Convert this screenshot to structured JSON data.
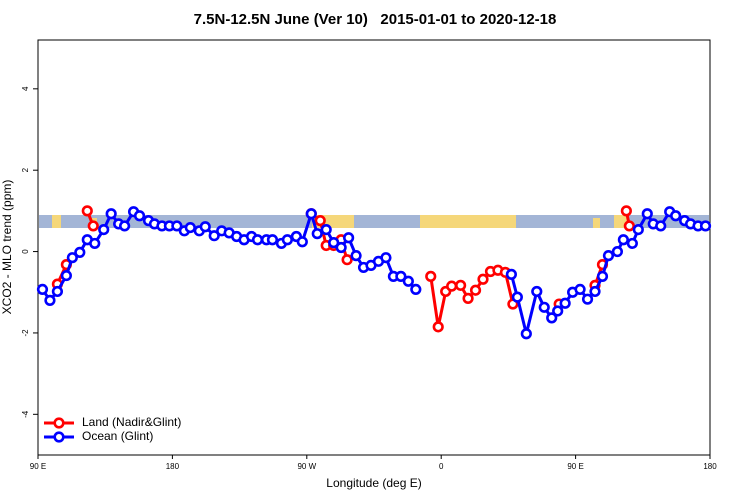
{
  "chart_data": {
    "type": "line",
    "title": "7.5N-12.5N June (Ver 10)   2015-01-01 to 2020-12-18",
    "x_label": "Longitude (deg E)",
    "y_label": "XCO2 - MLO trend (ppm)",
    "xlim": [
      90,
      540
    ],
    "ylim": [
      -5,
      5.2
    ],
    "xticks": [
      {
        "value": 90,
        "label": "90 E"
      },
      {
        "value": 180,
        "label": "180"
      },
      {
        "value": 270,
        "label": "90 W"
      },
      {
        "value": 360,
        "label": "0"
      },
      {
        "value": 450,
        "label": "90 E"
      },
      {
        "value": 540,
        "label": "180"
      }
    ],
    "yticks": [
      -4,
      -2,
      0,
      2,
      4
    ],
    "legend": "bottom-left",
    "series": [
      {
        "name": "Land (Nadir&Glint)",
        "color": "#ff0000",
        "x": [
          103,
          109,
          null,
          123,
          127,
          null,
          273,
          279,
          283,
          288,
          293,
          297,
          null,
          353,
          358,
          363,
          367,
          373,
          378,
          383,
          388,
          393,
          398,
          403,
          408,
          null,
          439,
          null,
          463,
          468,
          null,
          484,
          486
        ],
        "values": [
          -0.8,
          -0.32,
          null,
          1.0,
          0.63,
          null,
          0.93,
          0.76,
          0.15,
          0.15,
          0.29,
          -0.2,
          null,
          -0.61,
          -1.85,
          -0.98,
          -0.85,
          -0.83,
          -1.15,
          -0.95,
          -0.68,
          -0.49,
          -0.46,
          -0.51,
          -1.29,
          null,
          -1.29,
          null,
          -0.83,
          -0.32,
          null,
          1.0,
          0.63
        ]
      },
      {
        "name": "Ocean (Glint)",
        "color": "#0000ff",
        "x": [
          93,
          98,
          103,
          109,
          113,
          118,
          123,
          128,
          134,
          139,
          144,
          148,
          154,
          158,
          164,
          168,
          173,
          178,
          183,
          188,
          192,
          198,
          202,
          208,
          213,
          218,
          223,
          228,
          233,
          237,
          243,
          247,
          253,
          257,
          263,
          267,
          273,
          277,
          283,
          288,
          293,
          298,
          303,
          308,
          313,
          318,
          323,
          328,
          333,
          338,
          343,
          null,
          407,
          411,
          417,
          424,
          429,
          434,
          438,
          443,
          448,
          453,
          458,
          463,
          468,
          472,
          478,
          482,
          488,
          492,
          498,
          502,
          507,
          513,
          517,
          523,
          527,
          532,
          537
        ],
        "values": [
          -0.93,
          -1.2,
          -0.98,
          -0.59,
          -0.15,
          -0.02,
          0.29,
          0.2,
          0.54,
          0.93,
          0.68,
          0.63,
          0.98,
          0.88,
          0.76,
          0.68,
          0.63,
          0.63,
          0.63,
          0.51,
          0.59,
          0.51,
          0.61,
          0.39,
          0.51,
          0.46,
          0.37,
          0.29,
          0.37,
          0.29,
          0.29,
          0.29,
          0.2,
          0.29,
          0.37,
          0.24,
          0.93,
          0.44,
          0.54,
          0.22,
          0.1,
          0.34,
          -0.1,
          -0.39,
          -0.34,
          -0.24,
          -0.15,
          -0.61,
          -0.61,
          -0.73,
          -0.93,
          null,
          -0.56,
          -1.12,
          -2.02,
          -0.98,
          -1.37,
          -1.63,
          -1.46,
          -1.27,
          -1.0,
          -0.93,
          -1.17,
          -0.98,
          -0.61,
          -0.1,
          0,
          0.29,
          0.2,
          0.54,
          0.93,
          0.68,
          0.63,
          0.98,
          0.88,
          0.76,
          0.68,
          0.63,
          0.63
        ]
      }
    ]
  }
}
